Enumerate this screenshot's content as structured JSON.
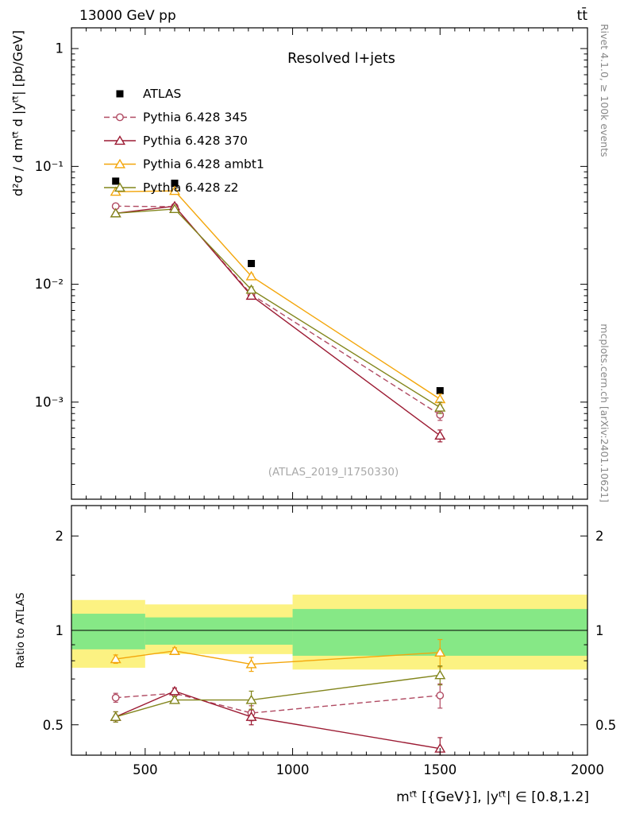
{
  "labels": {
    "header_left": "13000 GeV pp",
    "header_right": "tt̄",
    "title": "Resolved l+jets",
    "watermark": "(ATLAS_2019_I1750330)",
    "ylabel": "d²σ / d mᵗᵗ̄ d |yᵗᵗ̄| [pb/GeV]",
    "ratio_ylabel": "Ratio to ATLAS",
    "xlabel": "mᵗᵗ̄ [{GeV}], |yᵗᵗ̄| ∈ [0.8,1.2]",
    "rivet": "Rivet 4.1.0, ≥ 100k events",
    "mcplots": "mcplots.cern.ch [arXiv:2401.10621]"
  },
  "chart_data": {
    "type": "line",
    "title": "Resolved l+jets",
    "x_axis": {
      "label": "mtt [{GeV}], |ytt| ∈ [0.8,1.2]",
      "scale": "linear",
      "min": 250,
      "max": 2000,
      "major_ticks": [
        500,
        1000,
        1500,
        2000
      ],
      "tick_labels": [
        "500",
        "1000",
        "1500",
        "2000"
      ],
      "minor_step": 50
    },
    "y_axis": {
      "label": "d²σ / d mtt d |ytt| [pb/GeV]",
      "scale": "log",
      "min": 0.00015,
      "max": 1.5,
      "major_ticks": [
        1,
        0.1,
        0.01,
        0.001
      ],
      "tick_labels": [
        "1",
        "10⁻¹",
        "10⁻²",
        "10⁻³"
      ]
    },
    "ratio_axis": {
      "label": "Ratio to ATLAS",
      "scale": "log",
      "min": 0.4,
      "max": 2.5,
      "major_ticks": [
        2,
        1,
        0.5
      ],
      "tick_labels": [
        "2",
        "1",
        "0.5"
      ],
      "minor_ticks": [
        0.6,
        0.7,
        0.8,
        0.9,
        1.5
      ],
      "band_colors": {
        "yellow": "#fcf282",
        "green": "#86e886"
      },
      "bands": [
        {
          "x0": 250,
          "x1": 500,
          "yellow": [
            0.76,
            1.25
          ],
          "green": [
            0.87,
            1.13
          ]
        },
        {
          "x0": 500,
          "x1": 1000,
          "yellow": [
            0.84,
            1.21
          ],
          "green": [
            0.9,
            1.1
          ]
        },
        {
          "x0": 1000,
          "x1": 2000,
          "yellow": [
            0.75,
            1.3
          ],
          "green": [
            0.83,
            1.17
          ]
        }
      ]
    },
    "series": [
      {
        "name": "ATLAS",
        "marker": "square",
        "color": "#000000",
        "line": "none",
        "x": [
          400,
          600,
          860,
          1500
        ],
        "y": [
          0.075,
          0.072,
          0.015,
          0.00125
        ]
      },
      {
        "name": "Pythia 6.428 345",
        "marker": "circle",
        "color": "#b04a62",
        "line": "dashed",
        "x": [
          400,
          600,
          860,
          1500
        ],
        "y": [
          0.046,
          0.0455,
          0.0082,
          0.00078
        ],
        "yerr": [
          0.0012,
          0.001,
          0.0004,
          8e-05
        ],
        "ratio": [
          0.61,
          0.63,
          0.545,
          0.62
        ],
        "ratio_err": [
          0.02,
          0.015,
          0.03,
          0.055
        ]
      },
      {
        "name": "Pythia 6.428 370",
        "marker": "triangle",
        "color": "#9c1b33",
        "line": "solid",
        "x": [
          400,
          600,
          860,
          1500
        ],
        "y": [
          0.04,
          0.046,
          0.008,
          0.00052
        ],
        "yerr": [
          0.0012,
          0.001,
          0.0004,
          6e-05
        ],
        "ratio": [
          0.53,
          0.64,
          0.53,
          0.42
        ],
        "ratio_err": [
          0.02,
          0.015,
          0.03,
          0.035
        ]
      },
      {
        "name": "Pythia 6.428 ambt1",
        "marker": "triangle",
        "color": "#f3a60b",
        "line": "solid",
        "x": [
          400,
          600,
          860,
          1500
        ],
        "y": [
          0.061,
          0.062,
          0.0117,
          0.00106
        ],
        "yerr": [
          0.0015,
          0.0012,
          0.0005,
          0.00011
        ],
        "ratio": [
          0.81,
          0.86,
          0.78,
          0.85
        ],
        "ratio_err": [
          0.025,
          0.02,
          0.04,
          0.085
        ]
      },
      {
        "name": "Pythia 6.428 z2",
        "marker": "triangle",
        "color": "#82851c",
        "line": "solid",
        "x": [
          400,
          600,
          860,
          1500
        ],
        "y": [
          0.04,
          0.0435,
          0.009,
          0.0009
        ],
        "yerr": [
          0.0012,
          0.001,
          0.0005,
          0.0001
        ],
        "ratio": [
          0.53,
          0.6,
          0.6,
          0.72
        ],
        "ratio_err": [
          0.02,
          0.015,
          0.04,
          0.05
        ]
      }
    ]
  }
}
